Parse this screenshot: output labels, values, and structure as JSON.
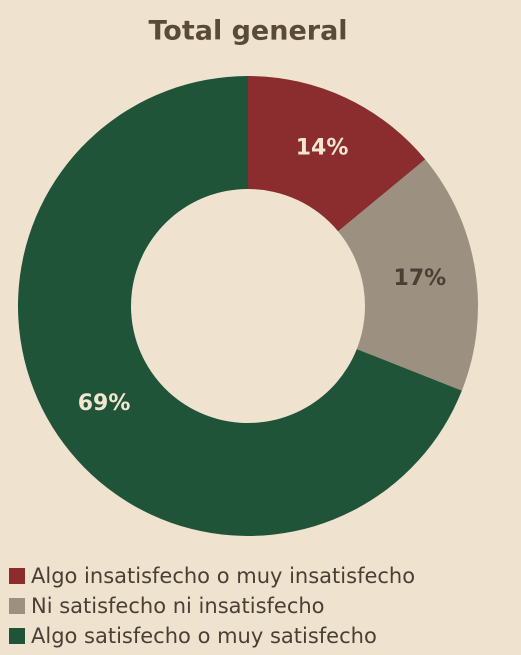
{
  "chart_data": {
    "type": "pie",
    "title": "Total general",
    "categories": [
      "Algo insatisfecho o muy insatisfecho",
      "Ni satisfecho ni insatisfecho",
      "Algo satisfecho o muy satisfecho"
    ],
    "values": [
      14,
      17,
      69
    ],
    "value_labels": [
      "14%",
      "17%",
      "69%"
    ],
    "colors": [
      "#8b2c2e",
      "#9c9080",
      "#1f5438"
    ],
    "label_colors": [
      "#f3e6d0",
      "#4a3f35",
      "#f3e6d0"
    ],
    "donut": true,
    "legend": "bottom"
  }
}
